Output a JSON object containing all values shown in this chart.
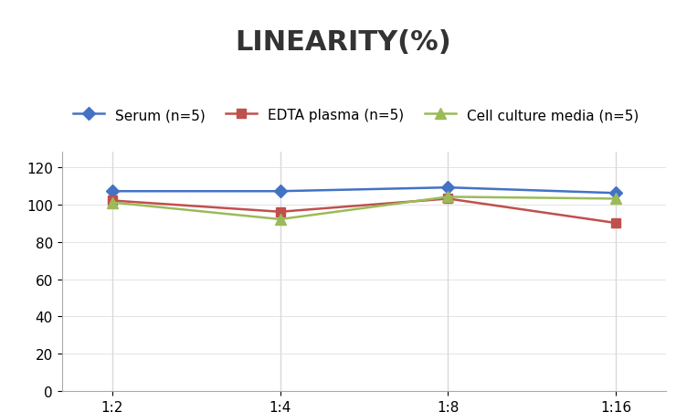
{
  "title": "LINEARITY(%)",
  "x_labels": [
    "1:2",
    "1:4",
    "1:8",
    "1:16"
  ],
  "x_positions": [
    0,
    1,
    2,
    3
  ],
  "series": [
    {
      "label": "Serum (n=5)",
      "values": [
        107,
        107,
        109,
        106
      ],
      "color": "#4472C4",
      "marker": "D",
      "marker_size": 7,
      "linewidth": 1.8
    },
    {
      "label": "EDTA plasma (n=5)",
      "values": [
        102,
        96,
        103,
        90
      ],
      "color": "#C0504D",
      "marker": "s",
      "marker_size": 7,
      "linewidth": 1.8
    },
    {
      "label": "Cell culture media (n=5)",
      "values": [
        101,
        92,
        104,
        103
      ],
      "color": "#9BBB59",
      "marker": "^",
      "marker_size": 8,
      "linewidth": 1.8
    }
  ],
  "ylim": [
    0,
    128
  ],
  "yticks": [
    0,
    20,
    40,
    60,
    80,
    100,
    120
  ],
  "grid_color": "#D9D9D9",
  "background_color": "#FFFFFF",
  "title_fontsize": 22,
  "legend_fontsize": 11,
  "tick_fontsize": 11
}
